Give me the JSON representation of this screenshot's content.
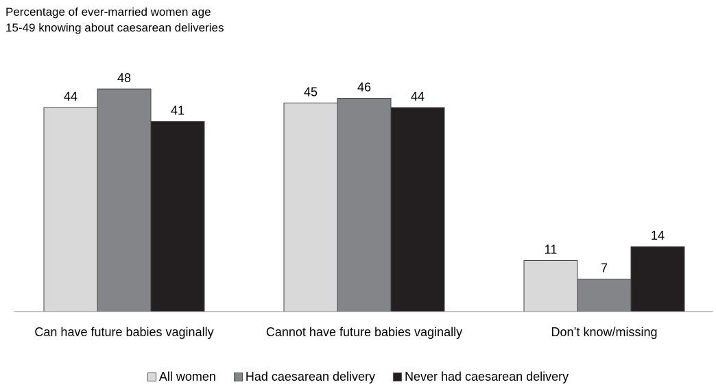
{
  "chart_data": {
    "type": "bar",
    "title": [
      "Percentage of ever-married women age",
      "15-49 knowing about caesarean deliveries"
    ],
    "categories": [
      "Can have future babies vaginally",
      "Cannot have future babies vaginally",
      "Don’t know/missing"
    ],
    "series": [
      {
        "name": "All women",
        "color": "#d9d9d9",
        "values": [
          44,
          45,
          11
        ]
      },
      {
        "name": "Had caesarean delivery",
        "color": "#848589",
        "values": [
          48,
          46,
          7
        ]
      },
      {
        "name": "Never had caesarean delivery",
        "color": "#231f20",
        "values": [
          41,
          44,
          14
        ]
      }
    ]
  }
}
